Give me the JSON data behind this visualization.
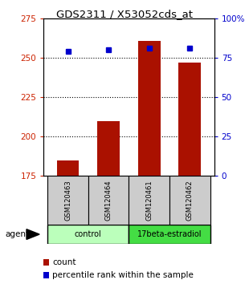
{
  "title": "GDS2311 / X53052cds_at",
  "categories": [
    "GSM120463",
    "GSM120464",
    "GSM120461",
    "GSM120462"
  ],
  "count_values": [
    185,
    210,
    261,
    247
  ],
  "percentile_values": [
    79,
    80,
    81,
    81
  ],
  "bar_color": "#aa1100",
  "dot_color": "#0000cc",
  "ylim_left": [
    175,
    275
  ],
  "ylim_right": [
    0,
    100
  ],
  "yticks_left": [
    175,
    200,
    225,
    250,
    275
  ],
  "yticks_right": [
    0,
    25,
    50,
    75,
    100
  ],
  "ytick_labels_right": [
    "0",
    "25",
    "50",
    "75",
    "100%"
  ],
  "grid_lines": [
    200,
    225,
    250
  ],
  "bar_width": 0.55,
  "groups": [
    {
      "label": "control",
      "indices": [
        0,
        1
      ],
      "color": "#bbffbb"
    },
    {
      "label": "17beta-estradiol",
      "indices": [
        2,
        3
      ],
      "color": "#44dd44"
    }
  ],
  "agent_label": "agent",
  "legend_count_label": "count",
  "legend_percentile_label": "percentile rank within the sample",
  "title_color": "#000000",
  "left_tick_color": "#cc2200",
  "right_tick_color": "#0000cc"
}
